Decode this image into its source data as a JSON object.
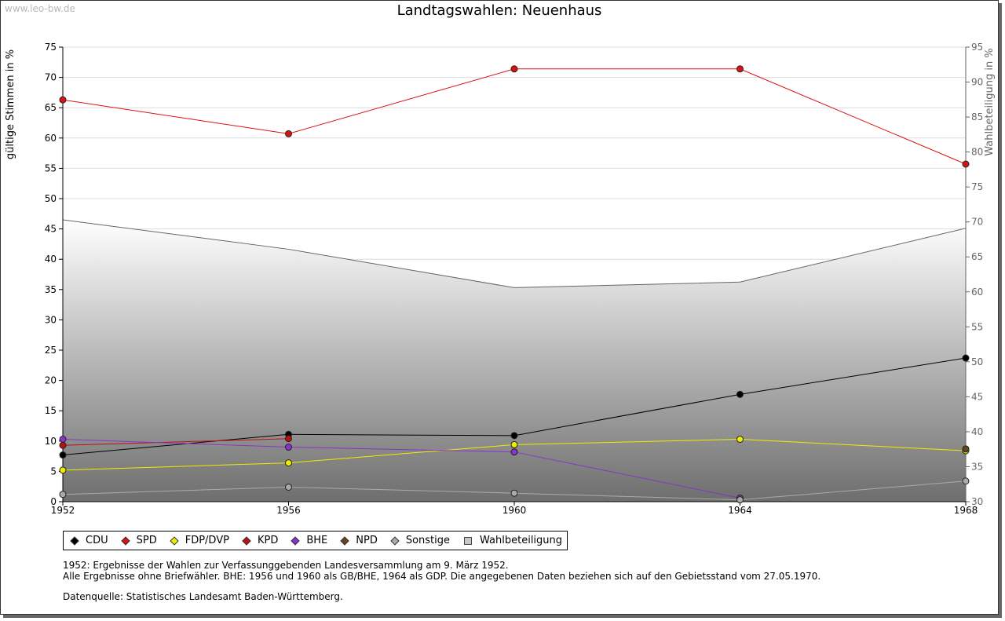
{
  "watermark": "www.leo-bw.de",
  "chart_data": {
    "type": "line",
    "title": "Landtagswahlen: Neuenhaus",
    "ylabel": "gültige Stimmen in %",
    "y2label": "Wahlbeteiligung in %",
    "x": [
      1952,
      1956,
      1960,
      1964,
      1968
    ],
    "x_tick_labels": [
      "1952",
      "1956",
      "1960",
      "1964",
      "1968"
    ],
    "ylim": [
      0,
      75
    ],
    "y_ticks": [
      "0",
      "5",
      "10",
      "15",
      "20",
      "25",
      "30",
      "35",
      "40",
      "45",
      "50",
      "55",
      "60",
      "65",
      "70",
      "75"
    ],
    "y2lim": [
      30,
      95
    ],
    "y2_ticks": [
      "30",
      "35",
      "40",
      "45",
      "50",
      "55",
      "60",
      "65",
      "70",
      "75",
      "80",
      "85",
      "90",
      "95"
    ],
    "grid": true,
    "legend_position": "bottom-left",
    "series": [
      {
        "name": "CDU",
        "color": "#000000",
        "values": [
          7.7,
          11.1,
          10.9,
          17.7,
          23.7
        ]
      },
      {
        "name": "SPD",
        "color": "#dd1111",
        "values": [
          66.3,
          60.7,
          71.4,
          71.4,
          55.7
        ]
      },
      {
        "name": "FDP/DVP",
        "color": "#eeee00",
        "values": [
          5.2,
          6.4,
          9.4,
          10.3,
          8.4
        ]
      },
      {
        "name": "KPD",
        "color": "#bb1111",
        "values": [
          9.3,
          10.4,
          null,
          null,
          null
        ]
      },
      {
        "name": "BHE",
        "color": "#8833cc",
        "values": [
          10.3,
          9.0,
          8.2,
          0.6,
          null
        ]
      },
      {
        "name": "NPD",
        "color": "#664422",
        "values": [
          null,
          null,
          null,
          null,
          8.7
        ]
      },
      {
        "name": "Sonstige",
        "color": "#aaaaaa",
        "values": [
          1.2,
          2.4,
          1.4,
          0.3,
          3.4
        ]
      },
      {
        "name": "Wahlbeteiligung",
        "color": "#666666",
        "axis": "right",
        "values": [
          70.3,
          66.1,
          60.6,
          61.4,
          69.1
        ]
      }
    ]
  },
  "notes": {
    "line1": "1952: Ergebnisse der Wahlen zur Verfassunggebenden Landesversammlung am 9. März 1952.",
    "line2": "Alle Ergebnisse ohne Briefwähler. BHE: 1956 und 1960 als GB/BHE, 1964 als GDP. Die angegebenen Daten beziehen sich auf den Gebietsstand vom 27.05.1970.",
    "source": "Datenquelle: Statistisches Landesamt Baden-Württemberg."
  }
}
